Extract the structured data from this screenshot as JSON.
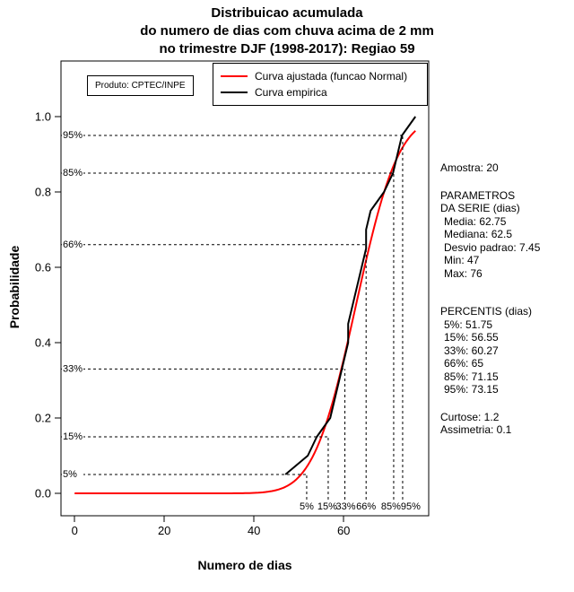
{
  "product_box": {
    "label": "Produto: CPTEC/INPE"
  },
  "side_panel": {
    "amostra": "Amostra: 20",
    "params_header1": "PARAMETROS",
    "params_header2": "DA SERIE (dias)",
    "params": [
      "Media: 62.75",
      "Mediana: 62.5",
      "Desvio padrao: 7.45",
      "Min: 47",
      "Max: 76"
    ],
    "percentis_header": "PERCENTIS (dias)",
    "percentis": [
      "5%: 51.75",
      "15%: 56.55",
      "33%: 60.27",
      "66%: 65",
      "85%: 71.15",
      "95%: 73.15"
    ],
    "curtose": "Curtose: 1.2",
    "assimetria": "Assimetria: 0.1"
  },
  "chart_data": {
    "type": "line",
    "title": [
      "Distribuicao acumulada",
      "do numero de dias com chuva acima de 2 mm",
      "no trimestre DJF (1998-2017): Regiao 59"
    ],
    "xlabel": "Numero de dias",
    "ylabel": "Probabilidade",
    "xlim": [
      0,
      78
    ],
    "ylim": [
      0,
      1.1
    ],
    "x_ticks": [
      0,
      20,
      40,
      60
    ],
    "y_ticks": [
      0,
      0.2,
      0.4,
      0.6,
      0.8,
      1
    ],
    "grid": false,
    "legend_position": "top-right",
    "legend": [
      {
        "label": "Curva ajustada (funcao Normal)",
        "color": "#FF0000"
      },
      {
        "label": "Curva empirica",
        "color": "#000000"
      }
    ],
    "series": [
      {
        "name": "Curva ajustada (funcao Normal)",
        "type": "normal_cdf",
        "color": "#FF0000",
        "mean": 62.75,
        "sd": 7.45,
        "x_range": [
          0,
          76
        ]
      },
      {
        "name": "Curva empirica",
        "type": "empirical_cdf",
        "color": "#000000",
        "points": [
          [
            47,
            0.05
          ],
          [
            52,
            0.1
          ],
          [
            54,
            0.15
          ],
          [
            57,
            0.2
          ],
          [
            58,
            0.25
          ],
          [
            59,
            0.3
          ],
          [
            60,
            0.35
          ],
          [
            61,
            0.4
          ],
          [
            61,
            0.45
          ],
          [
            62,
            0.5
          ],
          [
            63,
            0.55
          ],
          [
            64,
            0.6
          ],
          [
            65,
            0.65
          ],
          [
            65,
            0.7
          ],
          [
            66,
            0.75
          ],
          [
            69,
            0.8
          ],
          [
            71,
            0.85
          ],
          [
            72,
            0.9
          ],
          [
            73,
            0.95
          ],
          [
            76,
            1
          ]
        ]
      }
    ],
    "percentiles": [
      {
        "label": "5%",
        "value": 51.75,
        "p": 0.05
      },
      {
        "label": "15%",
        "value": 56.55,
        "p": 0.15
      },
      {
        "label": "33%",
        "value": 60.27,
        "p": 0.33
      },
      {
        "label": "66%",
        "value": 65,
        "p": 0.66
      },
      {
        "label": "85%",
        "value": 71.15,
        "p": 0.85
      },
      {
        "label": "95%",
        "value": 73.15,
        "p": 0.95
      }
    ],
    "stats": {
      "n": 20,
      "mean": 62.75,
      "median": 62.5,
      "sd": 7.45,
      "min": 47,
      "max": 76,
      "kurtosis": 1.2,
      "skewness": 0.1
    }
  }
}
